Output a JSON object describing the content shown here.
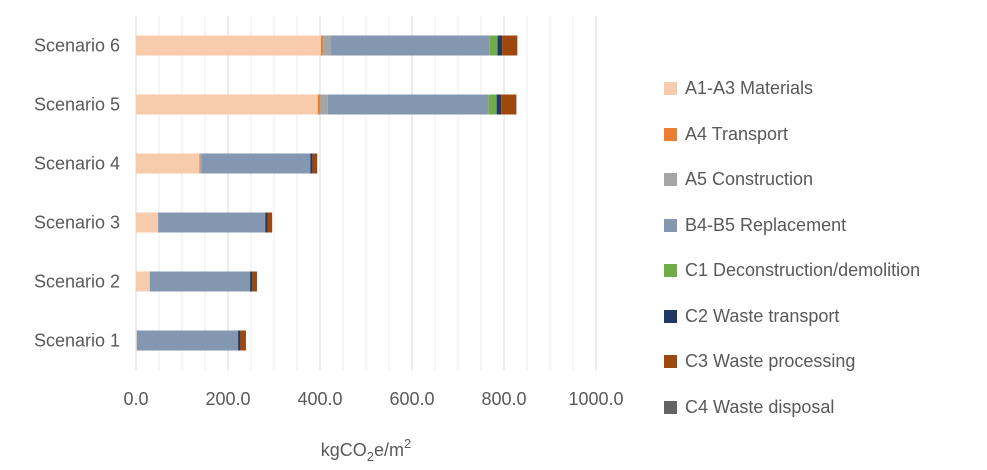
{
  "chart_data": {
    "type": "bar",
    "orientation": "horizontal",
    "stacked": true,
    "categories": [
      "Scenario 1",
      "Scenario 2",
      "Scenario 3",
      "Scenario 4",
      "Scenario 5",
      "Scenario 6"
    ],
    "series": [
      {
        "name": "A1-A3 Materials",
        "color": "#F8CBAD",
        "values": [
          2,
          30,
          48,
          138,
          395,
          402
        ]
      },
      {
        "name": "A4 Transport",
        "color": "#ED7D31",
        "values": [
          0,
          0,
          0,
          2,
          5,
          5
        ]
      },
      {
        "name": "A5 Construction",
        "color": "#A5A5A5",
        "values": [
          0,
          0,
          0,
          2,
          17,
          17
        ]
      },
      {
        "name": "B4-B5 Replacement",
        "color": "#8497B0",
        "values": [
          220,
          218,
          233,
          237,
          350,
          345
        ]
      },
      {
        "name": "C1 Deconstruction/demolition",
        "color": "#70AD47",
        "values": [
          0,
          0,
          0,
          0,
          17,
          17
        ]
      },
      {
        "name": "C2 Waste transport",
        "color": "#203864",
        "values": [
          5,
          5,
          5,
          5,
          10,
          10
        ]
      },
      {
        "name": "C3 Waste processing",
        "color": "#9E480E",
        "values": [
          12,
          10,
          10,
          10,
          33,
          33
        ]
      },
      {
        "name": "C4 Waste disposal",
        "color": "#636363",
        "values": [
          0,
          0,
          0,
          0,
          0,
          0
        ]
      }
    ],
    "xlim": [
      0,
      1000
    ],
    "xticks": [
      "0.0",
      "200.0",
      "400.0",
      "600.0",
      "800.0",
      "1000.0"
    ],
    "xlabel": "kgCO₂e/m²",
    "xlabel_parts": {
      "base": "kgCO",
      "sub": "2",
      "mid": "e/m",
      "sup": "2"
    },
    "grid": "vertical major and minor",
    "legend_position": "right"
  }
}
